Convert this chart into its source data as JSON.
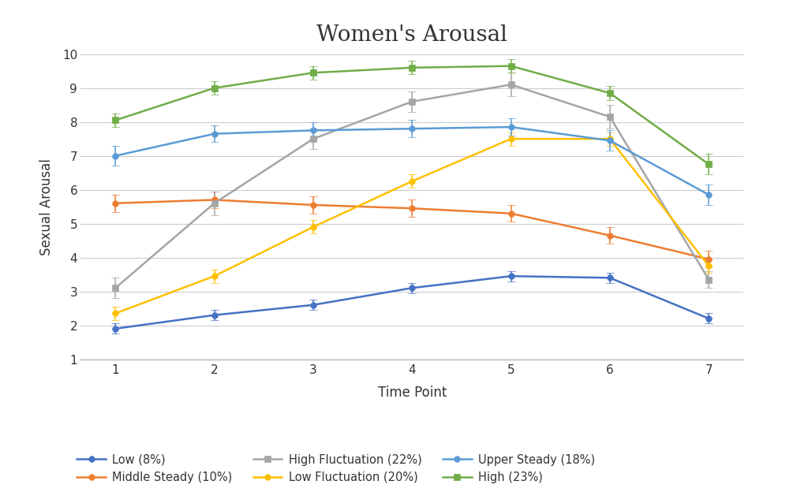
{
  "title": "Women's Arousal",
  "xlabel": "Time Point",
  "ylabel": "Sexual Arousal",
  "x": [
    1,
    2,
    3,
    4,
    5,
    6,
    7
  ],
  "series": {
    "Low (8%)": {
      "y": [
        1.9,
        2.3,
        2.6,
        3.1,
        3.45,
        3.4,
        2.2
      ],
      "yerr": [
        0.15,
        0.15,
        0.15,
        0.15,
        0.15,
        0.15,
        0.15
      ],
      "color": "#4472C4",
      "marker": "o"
    },
    "Middle Steady (10%)": {
      "y": [
        5.6,
        5.7,
        5.55,
        5.45,
        5.3,
        4.65,
        3.95
      ],
      "yerr": [
        0.25,
        0.25,
        0.25,
        0.25,
        0.25,
        0.25,
        0.25
      ],
      "color": "#ED7D31",
      "marker": "o"
    },
    "High Fluctuation (22%)": {
      "y": [
        3.1,
        5.6,
        7.5,
        8.6,
        9.1,
        8.15,
        3.35
      ],
      "yerr": [
        0.3,
        0.35,
        0.3,
        0.3,
        0.35,
        0.35,
        0.25
      ],
      "color": "#A5A5A5",
      "marker": "s"
    },
    "Low Fluctuation (20%)": {
      "y": [
        2.35,
        3.45,
        4.9,
        6.25,
        7.5,
        7.5,
        3.75
      ],
      "yerr": [
        0.2,
        0.2,
        0.2,
        0.2,
        0.2,
        0.2,
        0.2
      ],
      "color": "#FFC000",
      "marker": "o"
    },
    "Upper Steady (18%)": {
      "y": [
        7.0,
        7.65,
        7.75,
        7.8,
        7.85,
        7.45,
        5.85
      ],
      "yerr": [
        0.3,
        0.25,
        0.25,
        0.25,
        0.25,
        0.3,
        0.3
      ],
      "color": "#5B9BD5",
      "marker": "o"
    },
    "High (23%)": {
      "y": [
        8.05,
        9.0,
        9.45,
        9.6,
        9.65,
        8.85,
        6.75
      ],
      "yerr": [
        0.2,
        0.2,
        0.2,
        0.2,
        0.2,
        0.2,
        0.3
      ],
      "color": "#70AD47",
      "marker": "s"
    }
  },
  "legend_order": [
    "Low (8%)",
    "Middle Steady (10%)",
    "High Fluctuation (22%)",
    "Low Fluctuation (20%)",
    "Upper Steady (18%)",
    "High (23%)"
  ],
  "ylim": [
    1,
    10
  ],
  "yticks": [
    1,
    2,
    3,
    4,
    5,
    6,
    7,
    8,
    9,
    10
  ],
  "xticks": [
    1,
    2,
    3,
    4,
    5,
    6,
    7
  ],
  "background_color": "#ffffff",
  "grid_color": "#cccccc",
  "title_fontsize": 20,
  "label_fontsize": 12,
  "tick_fontsize": 11,
  "legend_fontsize": 10.5
}
